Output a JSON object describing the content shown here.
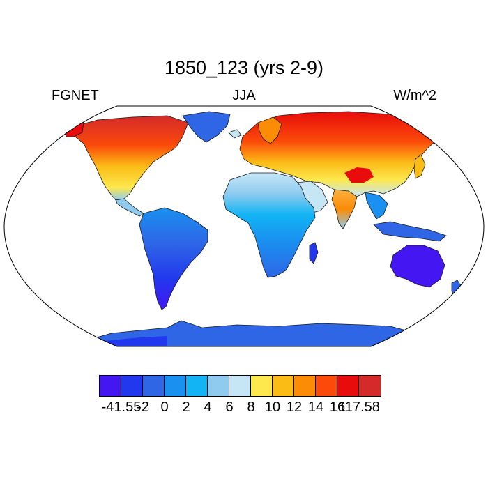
{
  "title": "1850_123 (yrs 2-9)",
  "left_label": "FGNET",
  "center_label": "JJA",
  "right_label": "W/m^2",
  "colorbar": {
    "colors": [
      "#4416f2",
      "#2238ee",
      "#2e66e6",
      "#1a90f0",
      "#12b4f4",
      "#8ecbef",
      "#c6e6f6",
      "#fde84e",
      "#fcbc16",
      "#fb8c06",
      "#fb4a0a",
      "#e80c0c",
      "#d42a2a"
    ],
    "labels": [
      "-41.55",
      "-2",
      "0",
      "2",
      "4",
      "6",
      "8",
      "10",
      "12",
      "14",
      "16",
      "117.58"
    ]
  },
  "map": {
    "projection": "Robinson",
    "ocean_color": "#ffffff"
  }
}
